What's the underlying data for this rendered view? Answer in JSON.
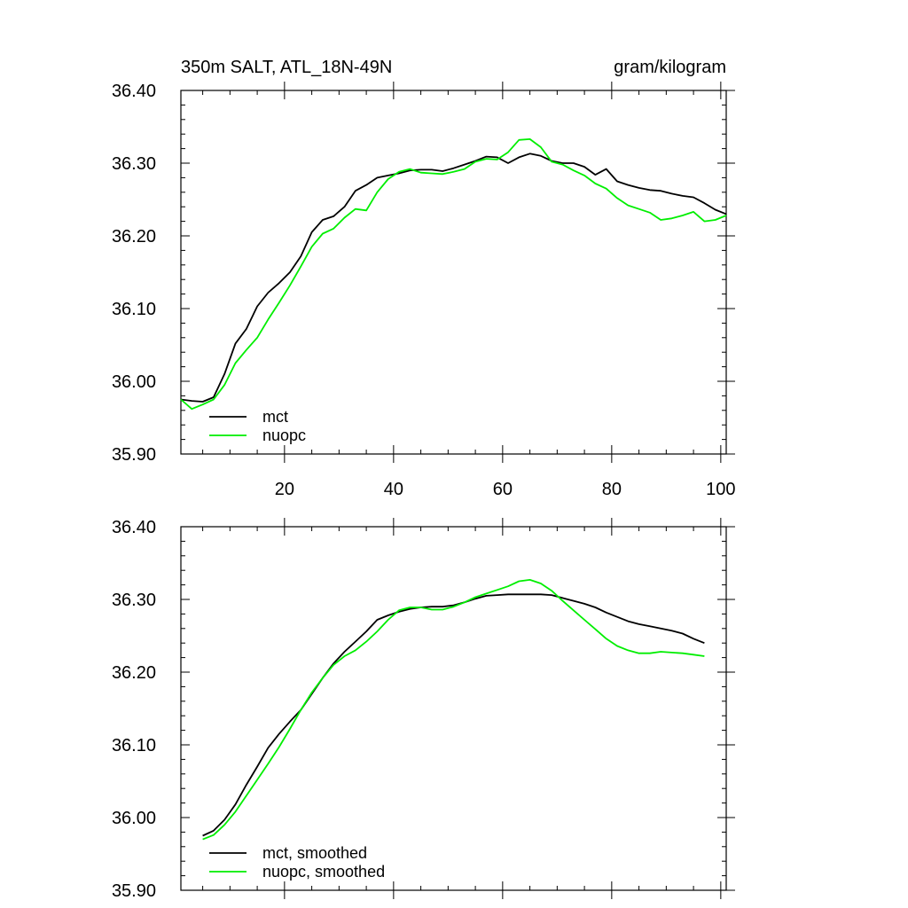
{
  "chart_data": [
    {
      "type": "line",
      "title": "350m SALT, ATL_18N-49N",
      "units": "gram/kilogram",
      "xlim": [
        1,
        101
      ],
      "ylim": [
        35.9,
        36.4
      ],
      "x_ticks": [
        20,
        40,
        60,
        80,
        100
      ],
      "x_tick_labels": [
        "20",
        "40",
        "60",
        "80",
        "100"
      ],
      "y_ticks": [
        35.9,
        36.0,
        36.1,
        36.2,
        36.3,
        36.4
      ],
      "y_tick_labels": [
        "35.90",
        "36.00",
        "36.10",
        "36.20",
        "36.30",
        "36.40"
      ],
      "legend_position": "bottom-left",
      "series": [
        {
          "name": "mct",
          "color": "#000000",
          "x": [
            1,
            3,
            5,
            7,
            9,
            11,
            13,
            15,
            17,
            19,
            21,
            23,
            25,
            27,
            29,
            31,
            33,
            35,
            37,
            39,
            41,
            43,
            45,
            47,
            49,
            51,
            53,
            55,
            57,
            59,
            61,
            63,
            65,
            67,
            69,
            71,
            73,
            75,
            77,
            79,
            81,
            83,
            85,
            87,
            89,
            91,
            93,
            95,
            97,
            99,
            101
          ],
          "values": [
            35.975,
            35.973,
            35.972,
            35.978,
            36.01,
            36.052,
            36.072,
            36.103,
            36.122,
            36.135,
            36.15,
            36.172,
            36.205,
            36.222,
            36.227,
            36.24,
            36.262,
            36.27,
            36.28,
            36.283,
            36.286,
            36.29,
            36.291,
            36.291,
            36.289,
            36.293,
            36.298,
            36.303,
            36.309,
            36.308,
            36.3,
            36.308,
            36.313,
            36.31,
            36.303,
            36.3,
            36.3,
            36.295,
            36.284,
            36.292,
            36.275,
            36.27,
            36.266,
            36.263,
            36.262,
            36.258,
            36.255,
            36.253,
            36.245,
            36.236,
            36.23
          ]
        },
        {
          "name": "nuopc",
          "color": "#00ee00",
          "x": [
            1,
            3,
            5,
            7,
            9,
            11,
            13,
            15,
            17,
            19,
            21,
            23,
            25,
            27,
            29,
            31,
            33,
            35,
            37,
            39,
            41,
            43,
            45,
            47,
            49,
            51,
            53,
            55,
            57,
            59,
            61,
            63,
            65,
            67,
            69,
            71,
            73,
            75,
            77,
            79,
            81,
            83,
            85,
            87,
            89,
            91,
            93,
            95,
            97,
            99,
            101
          ],
          "values": [
            35.975,
            35.962,
            35.968,
            35.975,
            35.995,
            36.025,
            36.043,
            36.06,
            36.085,
            36.108,
            36.132,
            36.158,
            36.185,
            36.203,
            36.21,
            36.225,
            36.237,
            36.235,
            36.26,
            36.278,
            36.288,
            36.292,
            36.287,
            36.286,
            36.285,
            36.288,
            36.292,
            36.302,
            36.306,
            36.305,
            36.315,
            36.332,
            36.333,
            36.322,
            36.302,
            36.298,
            36.29,
            36.283,
            36.272,
            36.265,
            36.252,
            36.242,
            36.237,
            36.232,
            36.222,
            36.224,
            36.228,
            36.233,
            36.22,
            36.222,
            36.228
          ]
        }
      ]
    },
    {
      "type": "line",
      "title": "",
      "units": "",
      "xlim": [
        1,
        101
      ],
      "ylim": [
        35.9,
        36.4
      ],
      "x_ticks": [
        20,
        40,
        60,
        80,
        100
      ],
      "x_tick_labels": [],
      "y_ticks": [
        35.9,
        36.0,
        36.1,
        36.2,
        36.3,
        36.4
      ],
      "y_tick_labels": [
        "35.90",
        "36.00",
        "36.10",
        "36.20",
        "36.30",
        "36.40"
      ],
      "legend_position": "bottom-left",
      "series": [
        {
          "name": "mct, smoothed",
          "color": "#000000",
          "x": [
            5,
            7,
            9,
            11,
            13,
            15,
            17,
            19,
            21,
            23,
            25,
            27,
            29,
            31,
            33,
            35,
            37,
            39,
            41,
            43,
            45,
            47,
            49,
            51,
            53,
            55,
            57,
            59,
            61,
            63,
            65,
            67,
            69,
            71,
            73,
            75,
            77,
            79,
            81,
            83,
            85,
            87,
            89,
            91,
            93,
            95,
            97
          ],
          "values": [
            35.975,
            35.982,
            35.997,
            36.018,
            36.045,
            36.07,
            36.096,
            36.115,
            36.132,
            36.148,
            36.17,
            36.192,
            36.212,
            36.228,
            36.242,
            36.256,
            36.272,
            36.278,
            36.283,
            36.287,
            36.289,
            36.29,
            36.29,
            36.292,
            36.296,
            36.301,
            36.305,
            36.306,
            36.307,
            36.307,
            36.307,
            36.307,
            36.306,
            36.302,
            36.298,
            36.294,
            36.289,
            36.282,
            36.276,
            36.27,
            36.266,
            36.263,
            36.26,
            36.257,
            36.253,
            36.246,
            36.24
          ]
        },
        {
          "name": "nuopc, smoothed",
          "color": "#00ee00",
          "x": [
            5,
            7,
            9,
            11,
            13,
            15,
            17,
            19,
            21,
            23,
            25,
            27,
            29,
            31,
            33,
            35,
            37,
            39,
            41,
            43,
            45,
            47,
            49,
            51,
            53,
            55,
            57,
            59,
            61,
            63,
            65,
            67,
            69,
            71,
            73,
            75,
            77,
            79,
            81,
            83,
            85,
            87,
            89,
            91,
            93,
            95,
            97
          ],
          "values": [
            35.97,
            35.976,
            35.99,
            36.008,
            36.03,
            36.052,
            36.074,
            36.097,
            36.122,
            36.148,
            36.172,
            36.192,
            36.21,
            36.222,
            36.23,
            36.242,
            36.256,
            36.272,
            36.285,
            36.289,
            36.289,
            36.286,
            36.286,
            36.29,
            36.296,
            36.303,
            36.308,
            36.313,
            36.318,
            36.325,
            36.327,
            36.322,
            36.312,
            36.298,
            36.285,
            36.272,
            36.259,
            36.246,
            36.236,
            36.23,
            36.226,
            36.226,
            36.228,
            36.227,
            36.226,
            36.224,
            36.222
          ]
        }
      ]
    }
  ]
}
